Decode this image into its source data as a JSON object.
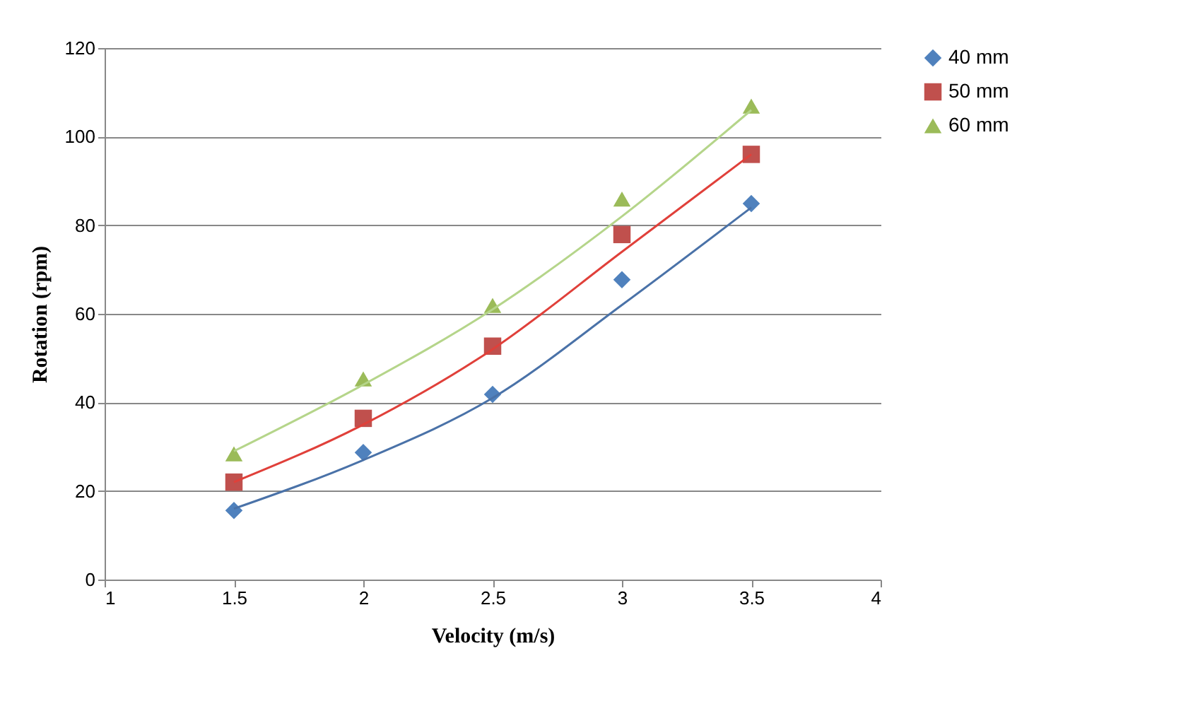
{
  "chart_data": {
    "type": "scatter",
    "xlabel": "Velocity (m/s)",
    "ylabel": "Rotation (rpm)",
    "xlim": [
      1,
      4
    ],
    "xticks": [
      1,
      1.5,
      2,
      2.5,
      3,
      3.5,
      4
    ],
    "ylim": [
      0,
      120
    ],
    "yticks": [
      0,
      20,
      40,
      60,
      80,
      100,
      120
    ],
    "grid": "y",
    "legend": "right",
    "x": [
      1.5,
      2,
      2.5,
      3,
      3.5
    ],
    "series": [
      {
        "name": "40 mm",
        "color": "#4f81bd",
        "marker": "diamond",
        "values": [
          15.6,
          28.7,
          41.8,
          67.7,
          84.9
        ]
      },
      {
        "name": "50 mm",
        "color": "#c0504d",
        "marker": "square",
        "values": [
          22,
          36.4,
          52.7,
          77.9,
          96
        ]
      },
      {
        "name": "60 mm",
        "color": "#9bbb59",
        "marker": "triangle",
        "values": [
          28.4,
          45.3,
          61.9,
          85.9,
          106.9
        ]
      },
      {
        "type": "line",
        "color": "#4a72a8",
        "marker": "none",
        "x": [
          1.5,
          2,
          2.5,
          3,
          3.5
        ],
        "values": [
          16,
          27,
          41,
          62,
          84
        ]
      },
      {
        "type": "line",
        "color": "#e0403a",
        "marker": "none",
        "x": [
          1.5,
          2,
          2.5,
          3,
          3.5
        ],
        "values": [
          22,
          35,
          52,
          74,
          96
        ]
      },
      {
        "type": "line",
        "color": "#b5d58a",
        "marker": "none",
        "x": [
          1.5,
          2,
          2.5,
          3,
          3.5
        ],
        "values": [
          29,
          44,
          61,
          82,
          106
        ]
      }
    ]
  }
}
